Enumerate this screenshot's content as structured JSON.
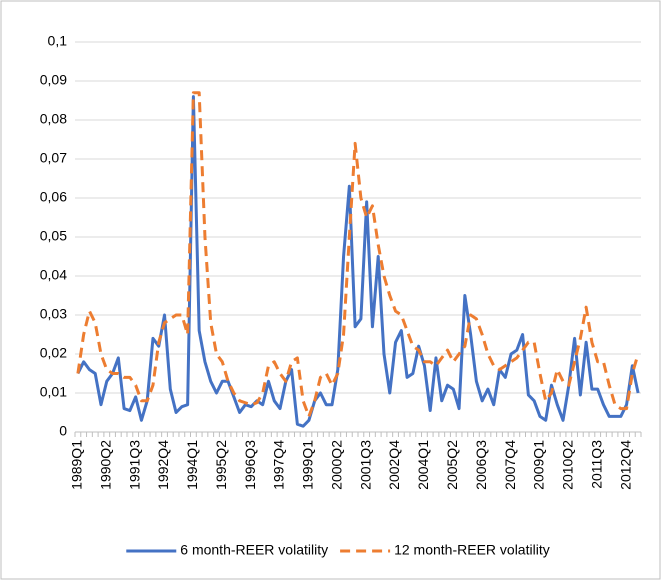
{
  "chart_data": {
    "type": "line",
    "categories": [
      "1989Q1",
      null,
      null,
      null,
      null,
      "1990Q2",
      null,
      null,
      null,
      null,
      "1991Q3",
      null,
      null,
      null,
      null,
      "1992Q4",
      null,
      null,
      null,
      null,
      "1994Q1",
      null,
      null,
      null,
      null,
      "1995Q2",
      null,
      null,
      null,
      null,
      "1996Q3",
      null,
      null,
      null,
      null,
      "1997Q4",
      null,
      null,
      null,
      null,
      "1999Q1",
      null,
      null,
      null,
      null,
      "2000Q2",
      null,
      null,
      null,
      null,
      "2001Q3",
      null,
      null,
      null,
      null,
      "2002Q4",
      null,
      null,
      null,
      null,
      "2004Q1",
      null,
      null,
      null,
      null,
      "2005Q2",
      null,
      null,
      null,
      null,
      "2006Q3",
      null,
      null,
      null,
      null,
      "2007Q4",
      null,
      null,
      null,
      null,
      "2009Q1",
      null,
      null,
      null,
      null,
      "2010Q2",
      null,
      null,
      null,
      null,
      "2011Q3",
      null,
      null,
      null,
      null,
      "2012Q4",
      null,
      null
    ],
    "series": [
      {
        "name": "6 month-REER volatility",
        "color": "#4472c4",
        "dash": false,
        "values": [
          0.015,
          0.018,
          0.016,
          0.015,
          0.007,
          0.013,
          0.015,
          0.019,
          0.006,
          0.0055,
          0.009,
          0.003,
          0.008,
          0.024,
          0.022,
          0.03,
          0.011,
          0.005,
          0.0065,
          0.007,
          0.086,
          0.026,
          0.018,
          0.013,
          0.01,
          0.013,
          0.013,
          0.009,
          0.005,
          0.007,
          0.0065,
          0.008,
          0.007,
          0.013,
          0.008,
          0.006,
          0.013,
          0.016,
          0.002,
          0.0015,
          0.003,
          0.008,
          0.01,
          0.007,
          0.007,
          0.016,
          0.045,
          0.063,
          0.027,
          0.029,
          0.059,
          0.027,
          0.045,
          0.02,
          0.01,
          0.023,
          0.026,
          0.014,
          0.015,
          0.022,
          0.017,
          0.0055,
          0.019,
          0.008,
          0.012,
          0.011,
          0.006,
          0.035,
          0.025,
          0.013,
          0.008,
          0.011,
          0.007,
          0.016,
          0.014,
          0.02,
          0.021,
          0.025,
          0.0095,
          0.008,
          0.004,
          0.003,
          0.012,
          0.007,
          0.003,
          0.012,
          0.024,
          0.0095,
          0.023,
          0.011,
          0.011,
          0.007,
          0.004,
          0.004,
          0.004,
          0.007,
          0.017,
          0.01
        ]
      },
      {
        "name": "12 month-REER volatility",
        "color": "#ed7d31",
        "dash": true,
        "values": [
          0.015,
          0.025,
          0.031,
          0.028,
          0.02,
          0.016,
          0.015,
          0.015,
          0.014,
          0.014,
          0.012,
          0.008,
          0.008,
          0.012,
          0.023,
          0.028,
          0.029,
          0.03,
          0.03,
          0.025,
          0.087,
          0.087,
          0.05,
          0.028,
          0.02,
          0.018,
          0.013,
          0.01,
          0.008,
          0.0075,
          0.007,
          0.0075,
          0.01,
          0.017,
          0.018,
          0.015,
          0.013,
          0.018,
          0.019,
          0.008,
          0.004,
          0.008,
          0.014,
          0.015,
          0.012,
          0.015,
          0.025,
          0.05,
          0.074,
          0.06,
          0.055,
          0.058,
          0.048,
          0.04,
          0.035,
          0.031,
          0.03,
          0.026,
          0.022,
          0.021,
          0.018,
          0.018,
          0.017,
          0.019,
          0.021,
          0.018,
          0.02,
          0.022,
          0.03,
          0.029,
          0.025,
          0.02,
          0.017,
          0.016,
          0.017,
          0.018,
          0.019,
          0.021,
          0.023,
          0.023,
          0.015,
          0.008,
          0.01,
          0.016,
          0.013,
          0.012,
          0.018,
          0.024,
          0.032,
          0.023,
          0.018,
          0.018,
          0.012,
          0.007,
          0.006,
          0.006,
          0.015,
          0.02
        ]
      }
    ],
    "ylim": [
      0,
      0.1
    ],
    "yticks": [
      0,
      {
        "value": 0.01,
        "label": "0,01"
      },
      {
        "value": 0.02,
        "label": "0,02"
      },
      {
        "value": 0.03,
        "label": "0,03"
      },
      {
        "value": 0.04,
        "label": "0,04"
      },
      {
        "value": 0.05,
        "label": "0,05"
      },
      {
        "value": 0.06,
        "label": "0,06"
      },
      {
        "value": 0.07,
        "label": "0,07"
      },
      {
        "value": 0.08,
        "label": "0,08"
      },
      {
        "value": 0.09,
        "label": "0,09"
      },
      {
        "value": 0.1,
        "label": "0,1"
      }
    ],
    "grid": true,
    "legend": "bottom"
  }
}
